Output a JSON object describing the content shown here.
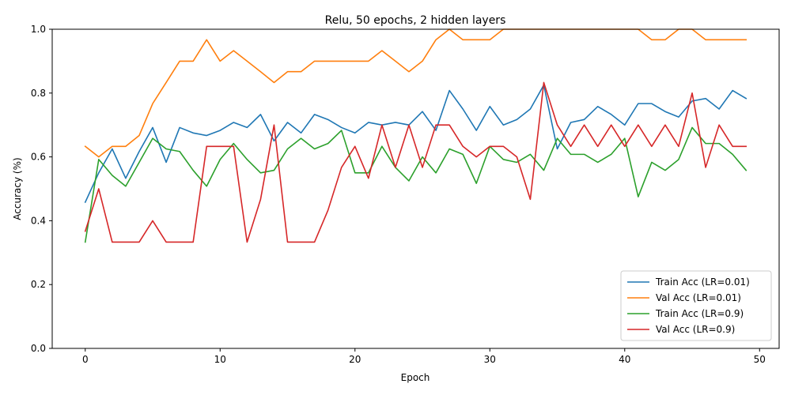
{
  "chart_data": {
    "type": "line",
    "title": "Relu, 50 epochs, 2 hidden layers",
    "xlabel": "Epoch",
    "ylabel": "Accuracy (%)",
    "xlim": [
      -2.45,
      51.45
    ],
    "ylim": [
      0.0,
      1.0
    ],
    "xticks": [
      0,
      10,
      20,
      30,
      40,
      50
    ],
    "yticks": [
      0.0,
      0.2,
      0.4,
      0.6,
      0.8,
      1.0
    ],
    "xtick_labels": [
      "0",
      "10",
      "20",
      "30",
      "40",
      "50"
    ],
    "ytick_labels": [
      "0.0",
      "0.2",
      "0.4",
      "0.6",
      "0.8",
      "1.0"
    ],
    "grid": false,
    "legend_position": "lower right",
    "x": [
      0,
      1,
      2,
      3,
      4,
      5,
      6,
      7,
      8,
      9,
      10,
      11,
      12,
      13,
      14,
      15,
      16,
      17,
      18,
      19,
      20,
      21,
      22,
      23,
      24,
      25,
      26,
      27,
      28,
      29,
      30,
      31,
      32,
      33,
      34,
      35,
      36,
      37,
      38,
      39,
      40,
      41,
      42,
      43,
      44,
      45,
      46,
      47,
      48,
      49
    ],
    "series": [
      {
        "name": "Train Acc (LR=0.01)",
        "color": "#1f77b4",
        "values": [
          0.458,
          0.55,
          0.625,
          0.533,
          0.617,
          0.692,
          0.583,
          0.692,
          0.675,
          0.667,
          0.683,
          0.708,
          0.692,
          0.733,
          0.65,
          0.708,
          0.675,
          0.733,
          0.717,
          0.692,
          0.675,
          0.708,
          0.7,
          0.708,
          0.7,
          0.742,
          0.683,
          0.808,
          0.75,
          0.683,
          0.758,
          0.7,
          0.717,
          0.75,
          0.825,
          0.625,
          0.708,
          0.717,
          0.758,
          0.733,
          0.7,
          0.767,
          0.767,
          0.742,
          0.725,
          0.775,
          0.783,
          0.75,
          0.808,
          0.783
        ]
      },
      {
        "name": "Val Acc (LR=0.01)",
        "color": "#ff7f0e",
        "values": [
          0.633,
          0.6,
          0.633,
          0.633,
          0.667,
          0.767,
          0.833,
          0.9,
          0.9,
          0.967,
          0.9,
          0.933,
          0.9,
          0.867,
          0.833,
          0.867,
          0.867,
          0.9,
          0.9,
          0.9,
          0.9,
          0.9,
          0.933,
          0.9,
          0.867,
          0.9,
          0.967,
          1.0,
          0.967,
          0.967,
          0.967,
          1.0,
          1.0,
          1.0,
          1.0,
          1.0,
          1.0,
          1.0,
          1.0,
          1.0,
          1.0,
          1.0,
          0.967,
          0.967,
          1.0,
          1.0,
          0.967,
          0.967,
          0.967,
          0.967
        ]
      },
      {
        "name": "Train Acc (LR=0.9)",
        "color": "#2ca02c",
        "values": [
          0.333,
          0.592,
          0.542,
          0.508,
          0.583,
          0.658,
          0.625,
          0.617,
          0.558,
          0.508,
          0.592,
          0.642,
          0.592,
          0.55,
          0.558,
          0.625,
          0.658,
          0.625,
          0.642,
          0.683,
          0.55,
          0.55,
          0.633,
          0.567,
          0.525,
          0.6,
          0.55,
          0.625,
          0.608,
          0.517,
          0.633,
          0.592,
          0.583,
          0.608,
          0.558,
          0.658,
          0.608,
          0.608,
          0.583,
          0.608,
          0.658,
          0.475,
          0.583,
          0.558,
          0.592,
          0.692,
          0.642,
          0.642,
          0.608,
          0.558
        ]
      },
      {
        "name": "Val Acc (LR=0.9)",
        "color": "#d62728",
        "values": [
          0.367,
          0.5,
          0.333,
          0.333,
          0.333,
          0.4,
          0.333,
          0.333,
          0.333,
          0.633,
          0.633,
          0.633,
          0.333,
          0.467,
          0.7,
          0.333,
          0.333,
          0.333,
          0.433,
          0.567,
          0.633,
          0.533,
          0.7,
          0.567,
          0.7,
          0.567,
          0.7,
          0.7,
          0.633,
          0.6,
          0.633,
          0.633,
          0.6,
          0.467,
          0.833,
          0.7,
          0.633,
          0.7,
          0.633,
          0.7,
          0.633,
          0.7,
          0.633,
          0.7,
          0.633,
          0.8,
          0.567,
          0.7,
          0.633,
          0.633
        ]
      }
    ]
  }
}
